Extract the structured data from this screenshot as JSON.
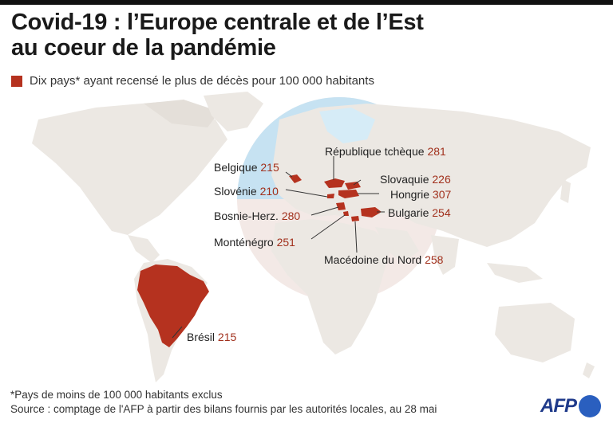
{
  "title": {
    "line1": "Covid-19 : l’Europe centrale et de l’Est",
    "line2": "au coeur de la pandémie"
  },
  "legend": {
    "label": "Dix pays* ayant recensé le plus de décès pour 100 000 habitants",
    "color": "#b5321f"
  },
  "countries": [
    {
      "name": "République tchèque",
      "value": "281"
    },
    {
      "name": "Belgique",
      "value": "215"
    },
    {
      "name": "Slovaquie",
      "value": "226"
    },
    {
      "name": "Slovénie",
      "value": "210"
    },
    {
      "name": "Hongrie",
      "value": "307"
    },
    {
      "name": "Bosnie-Herz.",
      "value": "280"
    },
    {
      "name": "Bulgarie",
      "value": "254"
    },
    {
      "name": "Monténégro",
      "value": "251"
    },
    {
      "name": "Macédoine du Nord",
      "value": "258"
    },
    {
      "name": "Brésil",
      "value": "215"
    }
  ],
  "footer": {
    "note": "*Pays de moins de 100 000 habitants exclus",
    "source": "Source : comptage de l'AFP à partir des bilans fournis par les autorités locales, au 28 mai"
  },
  "logo": {
    "text": "AFP",
    "color": "#1f3a8a"
  },
  "colors": {
    "land": "#ece8e3",
    "globe": "#c6e2f2",
    "highlight": "#b5321f"
  }
}
